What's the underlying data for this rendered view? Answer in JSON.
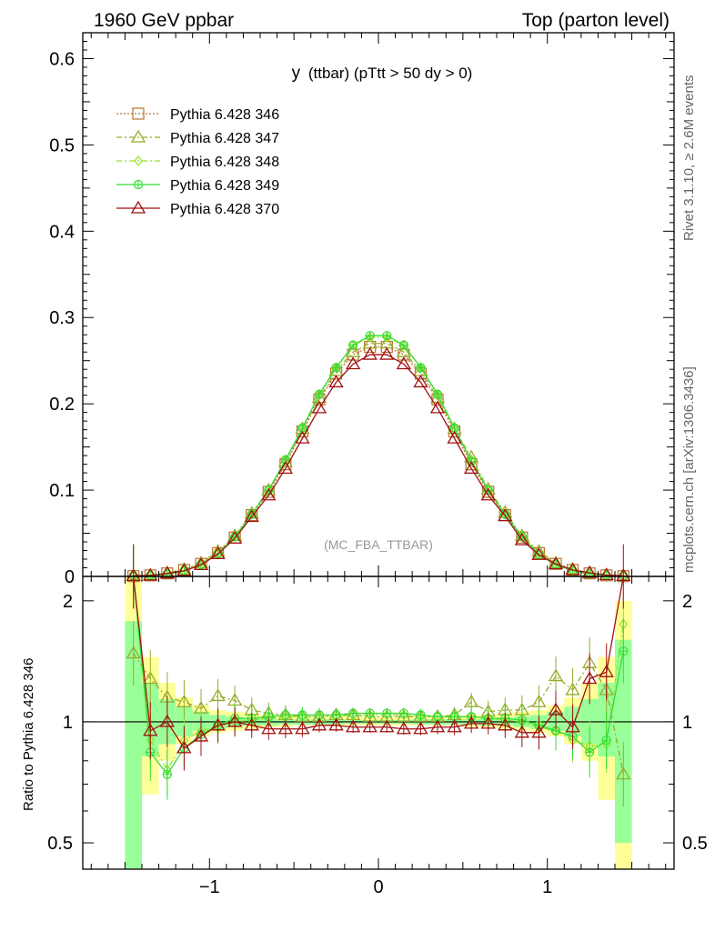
{
  "header": {
    "left": "1960 GeV ppbar",
    "right": "Top (parton level)"
  },
  "side": {
    "rivet": "Rivet 3.1.10, ≥ 2.6M events",
    "mcplots": "mcplots.cern.ch [arXiv:1306.3436]"
  },
  "chart_data": {
    "type": "line",
    "title_main": "y",
    "title_rest": "(ttbar) (pTtt > 50 dy > 0)",
    "analysis_tag": "(MC_FBA_TTBAR)",
    "ylabel_ratio": "Ratio to Pythia 6.428 346",
    "x_ticklabels": [
      "−1",
      "0",
      "1"
    ],
    "y_ticklabels_main": [
      "0",
      "0.1",
      "0.2",
      "0.3",
      "0.4",
      "0.5",
      "0.6"
    ],
    "y_ticklabels_ratio": [
      "0.5",
      "1",
      "2"
    ],
    "xlim": [
      -1.75,
      1.75
    ],
    "ylim_main": [
      0,
      0.63
    ],
    "ylim_ratio": [
      0.43,
      2.3
    ],
    "ratio_log_scale": true,
    "legend_position": "top-left",
    "x": [
      -1.45,
      -1.35,
      -1.25,
      -1.15,
      -1.05,
      -0.95,
      -0.85,
      -0.75,
      -0.65,
      -0.55,
      -0.45,
      -0.35,
      -0.25,
      -0.15,
      -0.05,
      0.05,
      0.15,
      0.25,
      0.35,
      0.45,
      0.55,
      0.65,
      0.75,
      0.85,
      0.95,
      1.05,
      1.15,
      1.25,
      1.35,
      1.45
    ],
    "series": [
      {
        "name": "Pythia 6.428 346",
        "color": "#b87333",
        "dash": "2,2",
        "marker": "square",
        "values": [
          0.0003,
          0.0012,
          0.0035,
          0.0075,
          0.0145,
          0.027,
          0.045,
          0.071,
          0.098,
          0.13,
          0.168,
          0.205,
          0.235,
          0.257,
          0.266,
          0.266,
          0.257,
          0.235,
          0.205,
          0.168,
          0.13,
          0.098,
          0.071,
          0.045,
          0.027,
          0.0145,
          0.0075,
          0.0035,
          0.0012,
          0.0003
        ]
      },
      {
        "name": "Pythia 6.428 347",
        "color": "#9aab2a",
        "dash": "6,3,2,3",
        "marker": "triangle",
        "values": [
          0.0004,
          0.0015,
          0.004,
          0.0083,
          0.0155,
          0.029,
          0.047,
          0.073,
          0.1,
          0.133,
          0.171,
          0.207,
          0.238,
          0.26,
          0.27,
          0.27,
          0.26,
          0.238,
          0.207,
          0.171,
          0.138,
          0.101,
          0.074,
          0.047,
          0.029,
          0.0155,
          0.0083,
          0.004,
          0.0015,
          0.0004
        ]
      },
      {
        "name": "Pythia 6.428 348",
        "color": "#99e02c",
        "dash": "6,3,2,3",
        "marker": "diamond",
        "values": [
          0.0007,
          0.001,
          0.0029,
          0.0067,
          0.0138,
          0.026,
          0.046,
          0.072,
          0.1,
          0.135,
          0.172,
          0.211,
          0.242,
          0.268,
          0.277,
          0.277,
          0.268,
          0.242,
          0.211,
          0.172,
          0.135,
          0.1,
          0.072,
          0.046,
          0.026,
          0.0138,
          0.0067,
          0.0029,
          0.0012,
          0.0005
        ]
      },
      {
        "name": "Pythia 6.428 349",
        "color": "#33dd33",
        "dash": "",
        "marker": "circle",
        "values": [
          0.0007,
          0.001,
          0.0026,
          0.0064,
          0.0135,
          0.026,
          0.046,
          0.072,
          0.1,
          0.135,
          0.172,
          0.211,
          0.242,
          0.268,
          0.279,
          0.279,
          0.268,
          0.242,
          0.211,
          0.172,
          0.133,
          0.1,
          0.072,
          0.046,
          0.025,
          0.0135,
          0.0066,
          0.0029,
          0.001,
          0.0005
        ]
      },
      {
        "name": "Pythia 6.428 370",
        "color": "#a01010",
        "dash": "",
        "marker": "triangle",
        "values": [
          0.0007,
          0.0011,
          0.0035,
          0.0065,
          0.0133,
          0.026,
          0.044,
          0.069,
          0.094,
          0.125,
          0.16,
          0.195,
          0.225,
          0.246,
          0.257,
          0.257,
          0.246,
          0.225,
          0.195,
          0.16,
          0.125,
          0.094,
          0.07,
          0.042,
          0.025,
          0.0142,
          0.0075,
          0.0042,
          0.0016,
          0.0007
        ]
      }
    ],
    "ratio_series": [
      {
        "name": "Pythia 6.428 347",
        "values": [
          1.48,
          1.28,
          1.15,
          1.12,
          1.08,
          1.16,
          1.13,
          1.07,
          1.05,
          1.04,
          1.03,
          1.03,
          1.04,
          1.04,
          1.03,
          1.03,
          1.03,
          1.03,
          1.03,
          1.04,
          1.12,
          1.06,
          1.07,
          1.07,
          1.12,
          1.3,
          1.2,
          1.4,
          1.2,
          0.74
        ]
      },
      {
        "name": "Pythia 6.428 348",
        "values": [
          2.3,
          0.9,
          0.76,
          0.9,
          0.95,
          0.97,
          1.0,
          1.01,
          1.02,
          1.03,
          1.03,
          1.03,
          1.03,
          1.04,
          1.04,
          1.04,
          1.04,
          1.03,
          1.03,
          1.03,
          1.03,
          1.02,
          1.01,
          1.0,
          0.97,
          0.95,
          0.9,
          0.87,
          0.88,
          1.75
        ]
      },
      {
        "name": "Pythia 6.428 349",
        "values": [
          2.3,
          0.84,
          0.74,
          0.86,
          0.93,
          0.98,
          1.02,
          1.02,
          1.03,
          1.04,
          1.04,
          1.04,
          1.04,
          1.05,
          1.05,
          1.05,
          1.05,
          1.04,
          1.03,
          1.03,
          1.03,
          1.02,
          1.02,
          1.01,
          0.98,
          0.95,
          0.92,
          0.84,
          0.9,
          1.5
        ]
      },
      {
        "name": "Pythia 6.428 370",
        "values": [
          2.3,
          0.95,
          1.0,
          0.86,
          0.92,
          0.98,
          1.0,
          0.98,
          0.96,
          0.96,
          0.96,
          0.98,
          0.98,
          0.97,
          0.97,
          0.97,
          0.96,
          0.96,
          0.97,
          0.97,
          0.99,
          0.99,
          0.98,
          0.94,
          0.94,
          1.07,
          0.97,
          1.28,
          1.33,
          2.3
        ]
      }
    ],
    "bands": {
      "yellow": [
        [
          0.6,
          2.3
        ],
        [
          0.66,
          1.45
        ],
        [
          0.8,
          1.25
        ],
        [
          0.88,
          1.15
        ],
        [
          0.92,
          1.1
        ],
        [
          0.94,
          1.07
        ],
        [
          0.95,
          1.06
        ],
        [
          0.96,
          1.05
        ],
        [
          0.97,
          1.04
        ],
        [
          0.97,
          1.04
        ],
        [
          0.98,
          1.03
        ],
        [
          0.98,
          1.03
        ],
        [
          0.98,
          1.03
        ],
        [
          0.98,
          1.03
        ],
        [
          0.98,
          1.03
        ],
        [
          0.98,
          1.03
        ],
        [
          0.98,
          1.03
        ],
        [
          0.98,
          1.03
        ],
        [
          0.98,
          1.03
        ],
        [
          0.98,
          1.03
        ],
        [
          0.97,
          1.04
        ],
        [
          0.97,
          1.04
        ],
        [
          0.96,
          1.05
        ],
        [
          0.95,
          1.06
        ],
        [
          0.94,
          1.07
        ],
        [
          0.92,
          1.1
        ],
        [
          0.88,
          1.15
        ],
        [
          0.8,
          1.25
        ],
        [
          0.64,
          1.45
        ],
        [
          0.4,
          2.0
        ]
      ],
      "green": [
        [
          0.4,
          1.78
        ],
        [
          0.82,
          1.25
        ],
        [
          0.88,
          1.14
        ],
        [
          0.92,
          1.09
        ],
        [
          0.95,
          1.06
        ],
        [
          0.96,
          1.04
        ],
        [
          0.97,
          1.03
        ],
        [
          0.98,
          1.02
        ],
        [
          0.98,
          1.02
        ],
        [
          0.985,
          1.015
        ],
        [
          0.985,
          1.015
        ],
        [
          0.985,
          1.015
        ],
        [
          0.985,
          1.015
        ],
        [
          0.99,
          1.01
        ],
        [
          0.99,
          1.01
        ],
        [
          0.99,
          1.01
        ],
        [
          0.99,
          1.01
        ],
        [
          0.985,
          1.015
        ],
        [
          0.985,
          1.015
        ],
        [
          0.985,
          1.015
        ],
        [
          0.985,
          1.015
        ],
        [
          0.98,
          1.02
        ],
        [
          0.98,
          1.02
        ],
        [
          0.97,
          1.03
        ],
        [
          0.96,
          1.04
        ],
        [
          0.95,
          1.06
        ],
        [
          0.92,
          1.09
        ],
        [
          0.88,
          1.14
        ],
        [
          0.82,
          1.25
        ],
        [
          0.5,
          1.6
        ]
      ]
    }
  }
}
